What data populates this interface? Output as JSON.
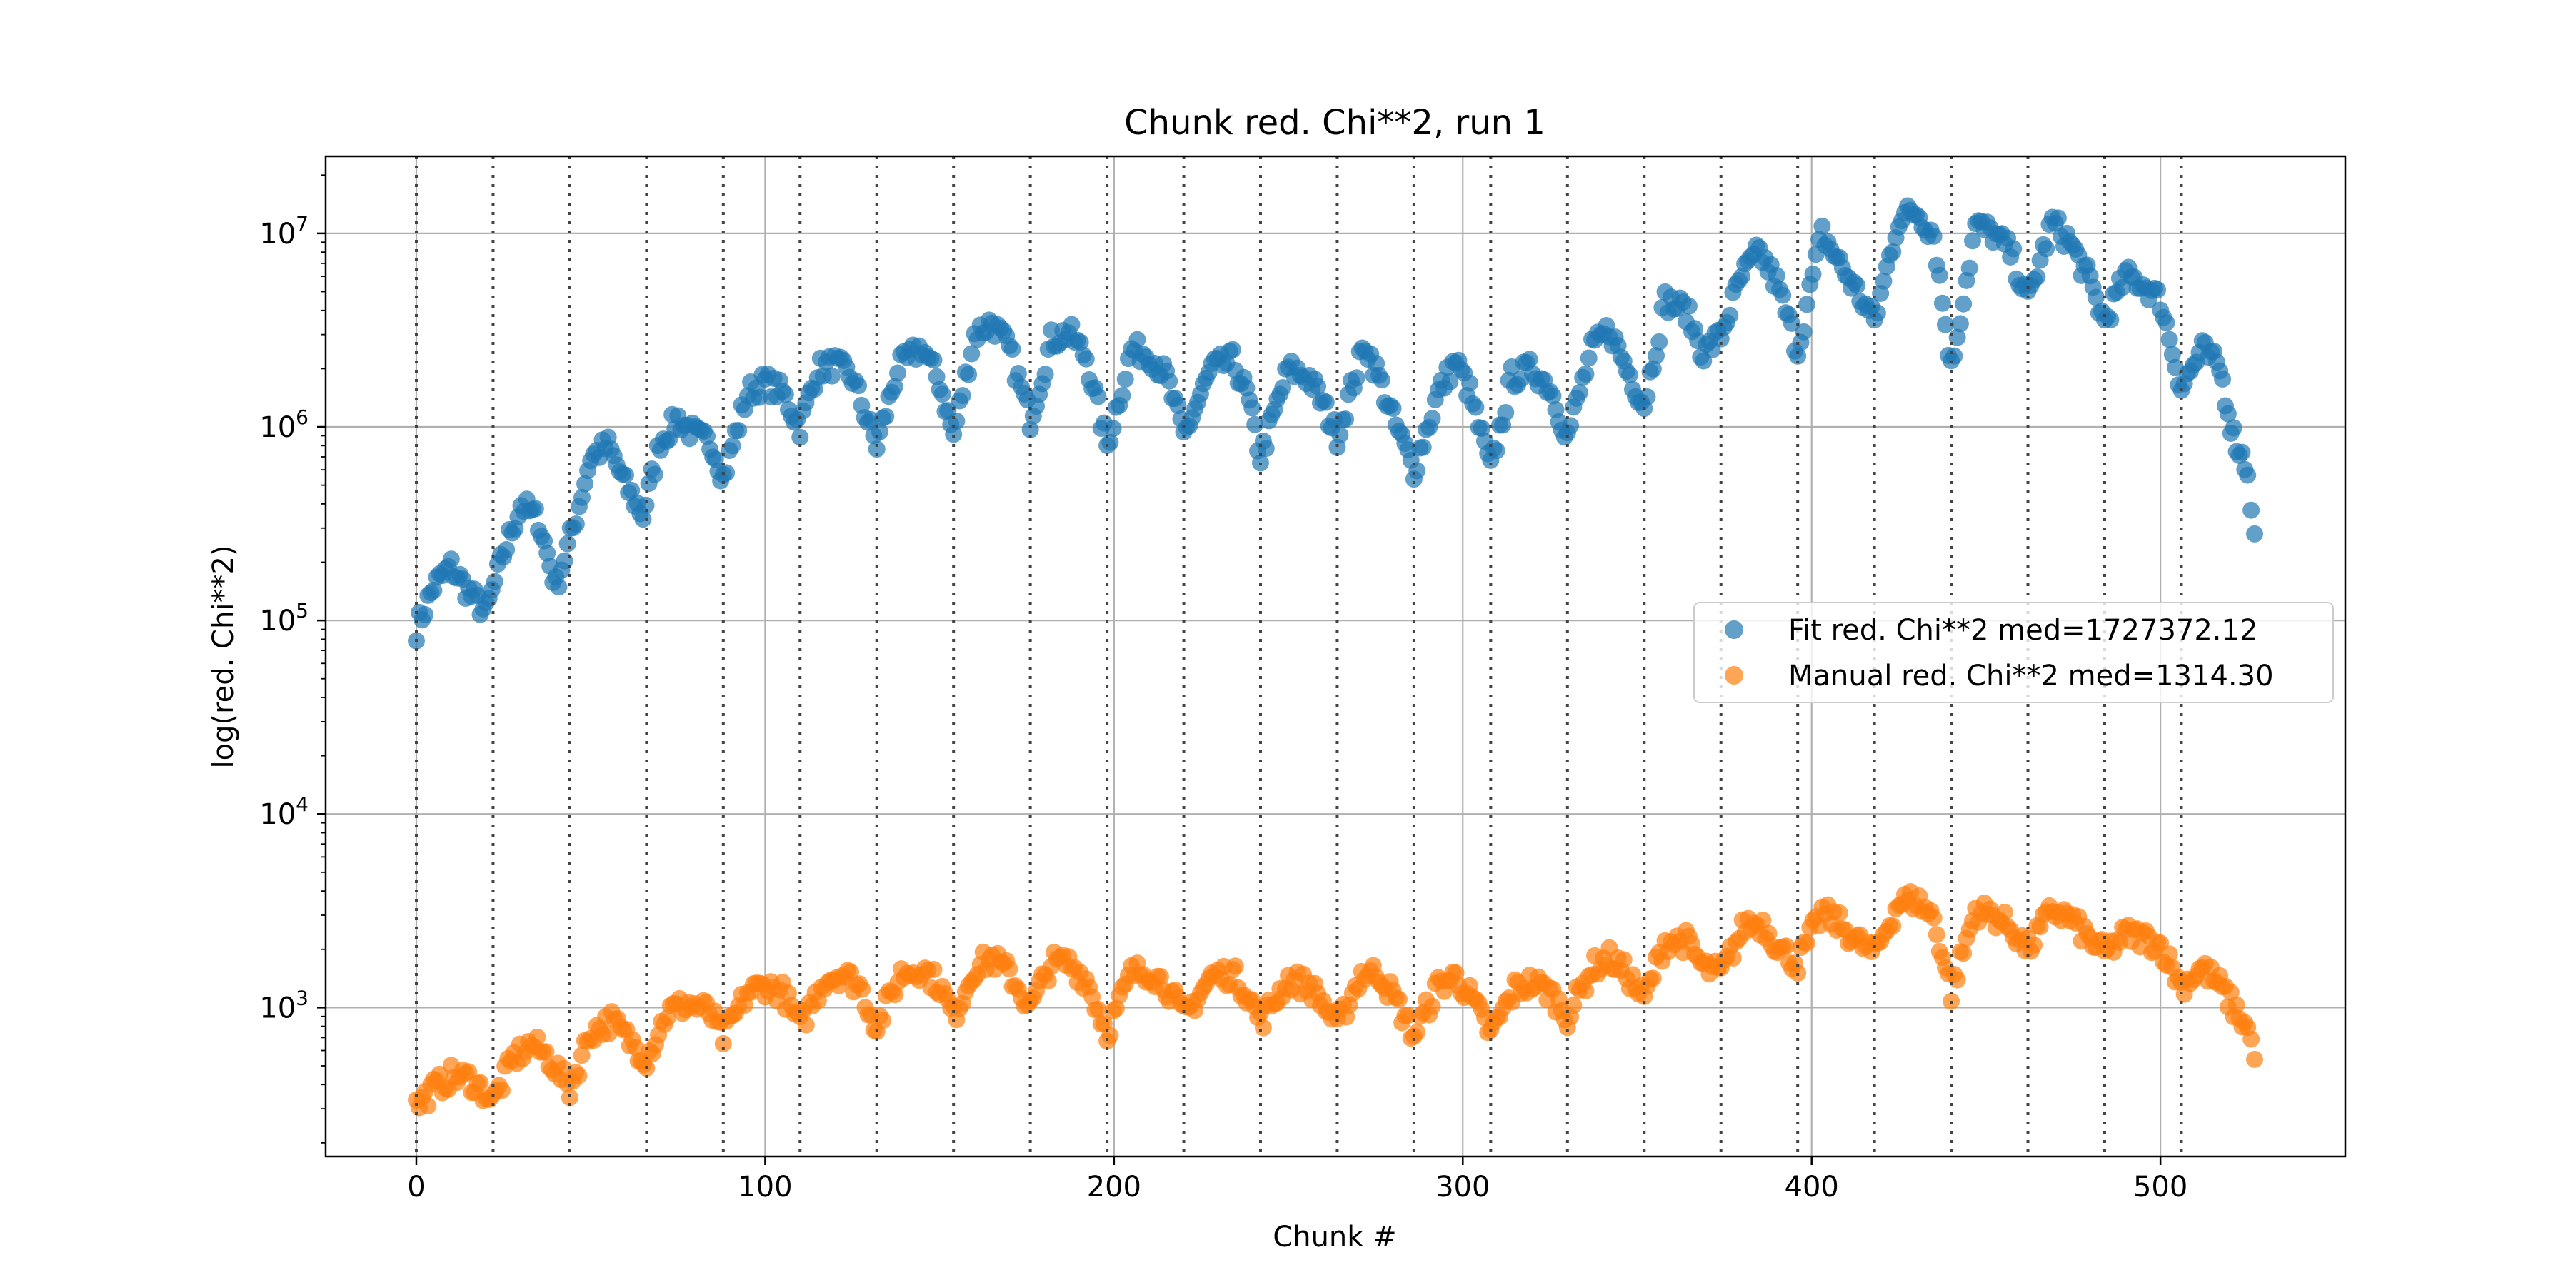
{
  "chart_data": {
    "type": "scatter",
    "title": "Chunk red. Chi**2, run 1",
    "xlabel": "Chunk #",
    "ylabel": "log(red. Chi**2)",
    "yscale": "log",
    "xlim": [
      -26,
      553
    ],
    "ylim": [
      170,
      25000000
    ],
    "xticks": [
      0,
      100,
      200,
      300,
      400,
      500
    ],
    "xtick_labels": [
      "0",
      "100",
      "200",
      "300",
      "400",
      "500"
    ],
    "yticks": [
      1000,
      10000,
      100000,
      1000000,
      10000000
    ],
    "ytick_labels": [
      {
        "base": "10",
        "exp": "3"
      },
      {
        "base": "10",
        "exp": "4"
      },
      {
        "base": "10",
        "exp": "5"
      },
      {
        "base": "10",
        "exp": "6"
      },
      {
        "base": "10",
        "exp": "7"
      }
    ],
    "grid": true,
    "legend_position": "center-right",
    "vlines": [
      0,
      22,
      44,
      66,
      88,
      110,
      132,
      154,
      176,
      198,
      220,
      242,
      264,
      286,
      308,
      330,
      352,
      374,
      396,
      418,
      440,
      462,
      484,
      506
    ],
    "series": [
      {
        "name": "Fit red. Chi**2 med=1727372.12",
        "color": "#1f77b4",
        "knots": [
          [
            0,
            90000
          ],
          [
            5,
            150000
          ],
          [
            10,
            190000
          ],
          [
            15,
            140000
          ],
          [
            20,
            110000
          ],
          [
            25,
            220000
          ],
          [
            30,
            400000
          ],
          [
            35,
            330000
          ],
          [
            40,
            150000
          ],
          [
            45,
            300000
          ],
          [
            50,
            700000
          ],
          [
            55,
            800000
          ],
          [
            60,
            500000
          ],
          [
            65,
            350000
          ],
          [
            70,
            850000
          ],
          [
            75,
            1100000
          ],
          [
            80,
            900000
          ],
          [
            85,
            800000
          ],
          [
            88,
            550000
          ],
          [
            95,
            1500000
          ],
          [
            100,
            1700000
          ],
          [
            105,
            1500000
          ],
          [
            110,
            1000000
          ],
          [
            115,
            2000000
          ],
          [
            120,
            2100000
          ],
          [
            125,
            1800000
          ],
          [
            132,
            800000
          ],
          [
            138,
            2000000
          ],
          [
            145,
            2600000
          ],
          [
            150,
            1700000
          ],
          [
            154,
            900000
          ],
          [
            160,
            3000000
          ],
          [
            165,
            3500000
          ],
          [
            170,
            2500000
          ],
          [
            176,
            1100000
          ],
          [
            182,
            2800000
          ],
          [
            187,
            3100000
          ],
          [
            192,
            2300000
          ],
          [
            198,
            800000
          ],
          [
            205,
            2500000
          ],
          [
            210,
            2400000
          ],
          [
            215,
            1800000
          ],
          [
            220,
            900000
          ],
          [
            228,
            2000000
          ],
          [
            234,
            2200000
          ],
          [
            238,
            1500000
          ],
          [
            242,
            700000
          ],
          [
            250,
            2000000
          ],
          [
            256,
            1800000
          ],
          [
            260,
            1300000
          ],
          [
            264,
            900000
          ],
          [
            272,
            2700000
          ],
          [
            276,
            1800000
          ],
          [
            280,
            1100000
          ],
          [
            286,
            600000
          ],
          [
            293,
            1500000
          ],
          [
            298,
            2200000
          ],
          [
            302,
            1500000
          ],
          [
            308,
            600000
          ],
          [
            314,
            1800000
          ],
          [
            320,
            2000000
          ],
          [
            325,
            1600000
          ],
          [
            330,
            900000
          ],
          [
            337,
            2500000
          ],
          [
            342,
            3200000
          ],
          [
            347,
            2000000
          ],
          [
            352,
            1300000
          ],
          [
            358,
            4500000
          ],
          [
            364,
            4000000
          ],
          [
            369,
            2400000
          ],
          [
            374,
            3000000
          ],
          [
            380,
            6000000
          ],
          [
            385,
            8000000
          ],
          [
            390,
            5500000
          ],
          [
            396,
            2500000
          ],
          [
            403,
            10000000
          ],
          [
            408,
            7000000
          ],
          [
            413,
            5000000
          ],
          [
            418,
            3500000
          ],
          [
            425,
            12000000
          ],
          [
            430,
            13000000
          ],
          [
            435,
            10000000
          ],
          [
            440,
            2000000
          ],
          [
            447,
            11000000
          ],
          [
            452,
            10000000
          ],
          [
            457,
            8000000
          ],
          [
            462,
            4500000
          ],
          [
            469,
            11500000
          ],
          [
            474,
            9000000
          ],
          [
            479,
            6000000
          ],
          [
            484,
            3500000
          ],
          [
            490,
            6000000
          ],
          [
            495,
            5500000
          ],
          [
            500,
            4500000
          ],
          [
            506,
            1600000
          ],
          [
            512,
            2500000
          ],
          [
            517,
            2000000
          ],
          [
            521,
            900000
          ],
          [
            525,
            600000
          ],
          [
            527,
            280000
          ]
        ]
      },
      {
        "name": "Manual red. Chi**2 med=1314.30",
        "color": "#ff7f0e",
        "knots": [
          [
            0,
            310
          ],
          [
            5,
            380
          ],
          [
            10,
            440
          ],
          [
            15,
            430
          ],
          [
            20,
            360
          ],
          [
            22,
            330
          ],
          [
            28,
            550
          ],
          [
            33,
            650
          ],
          [
            38,
            550
          ],
          [
            44,
            380
          ],
          [
            50,
            750
          ],
          [
            56,
            850
          ],
          [
            62,
            650
          ],
          [
            66,
            550
          ],
          [
            72,
            950
          ],
          [
            78,
            1050
          ],
          [
            84,
            950
          ],
          [
            88,
            700
          ],
          [
            95,
            1200
          ],
          [
            100,
            1300
          ],
          [
            105,
            1200
          ],
          [
            110,
            800
          ],
          [
            117,
            1400
          ],
          [
            122,
            1500
          ],
          [
            127,
            1300
          ],
          [
            132,
            800
          ],
          [
            139,
            1500
          ],
          [
            145,
            1600
          ],
          [
            150,
            1300
          ],
          [
            154,
            900
          ],
          [
            160,
            1600
          ],
          [
            165,
            1800
          ],
          [
            170,
            1500
          ],
          [
            176,
            1000
          ],
          [
            182,
            1700
          ],
          [
            187,
            1700
          ],
          [
            192,
            1400
          ],
          [
            198,
            750
          ],
          [
            205,
            1500
          ],
          [
            210,
            1550
          ],
          [
            215,
            1300
          ],
          [
            220,
            900
          ],
          [
            228,
            1450
          ],
          [
            234,
            1500
          ],
          [
            238,
            1200
          ],
          [
            242,
            850
          ],
          [
            250,
            1400
          ],
          [
            256,
            1300
          ],
          [
            260,
            1050
          ],
          [
            264,
            800
          ],
          [
            271,
            1500
          ],
          [
            276,
            1500
          ],
          [
            280,
            1150
          ],
          [
            286,
            720
          ],
          [
            293,
            1300
          ],
          [
            298,
            1450
          ],
          [
            302,
            1150
          ],
          [
            308,
            730
          ],
          [
            315,
            1250
          ],
          [
            320,
            1350
          ],
          [
            325,
            1200
          ],
          [
            330,
            900
          ],
          [
            337,
            1600
          ],
          [
            342,
            1800
          ],
          [
            347,
            1500
          ],
          [
            352,
            1100
          ],
          [
            358,
            2200
          ],
          [
            364,
            2200
          ],
          [
            369,
            1600
          ],
          [
            374,
            1500
          ],
          [
            381,
            2700
          ],
          [
            386,
            2700
          ],
          [
            391,
            2000
          ],
          [
            396,
            1700
          ],
          [
            403,
            3100
          ],
          [
            408,
            2700
          ],
          [
            413,
            2200
          ],
          [
            418,
            1900
          ],
          [
            425,
            3500
          ],
          [
            430,
            3600
          ],
          [
            435,
            2900
          ],
          [
            440,
            1200
          ],
          [
            447,
            3200
          ],
          [
            452,
            3000
          ],
          [
            457,
            2600
          ],
          [
            462,
            2000
          ],
          [
            469,
            3200
          ],
          [
            474,
            2900
          ],
          [
            479,
            2300
          ],
          [
            484,
            1900
          ],
          [
            490,
            2400
          ],
          [
            495,
            2300
          ],
          [
            500,
            2100
          ],
          [
            506,
            1300
          ],
          [
            512,
            1600
          ],
          [
            517,
            1300
          ],
          [
            521,
            1000
          ],
          [
            525,
            780
          ],
          [
            527,
            540
          ]
        ]
      }
    ]
  }
}
